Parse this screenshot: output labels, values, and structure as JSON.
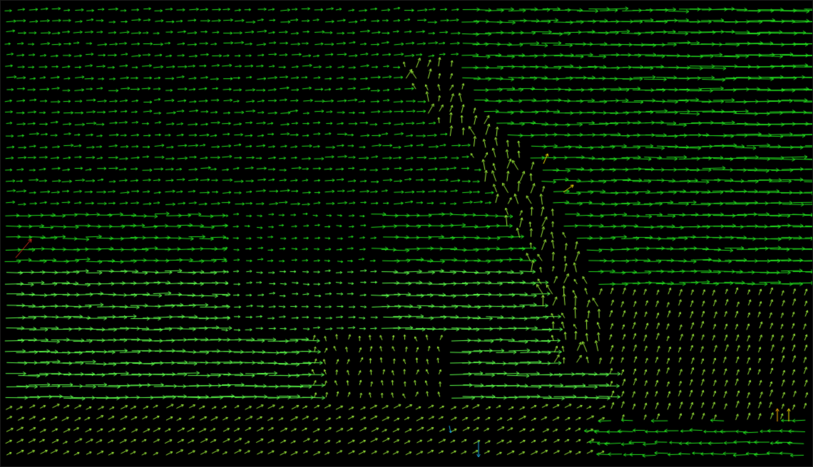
{
  "view": {
    "kind": "optical-flow-vector-field",
    "background_color": "#000000",
    "arrow_colors": {
      "primary": "#22e01e",
      "bright": "#5cff4a",
      "weak": "#9ef03a",
      "yellow": "#f5e600",
      "orange": "#ffb000",
      "red": "#e0321e",
      "cyan": "#1ea8e0"
    }
  }
}
